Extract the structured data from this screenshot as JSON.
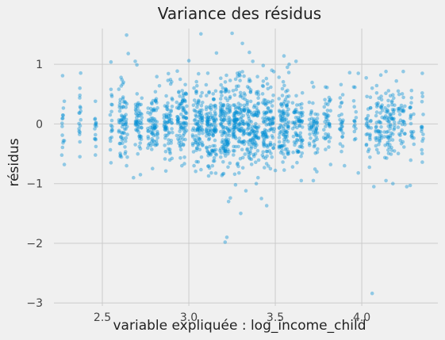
{
  "chart_data": {
    "type": "scatter",
    "title": "Variance des résidus",
    "xlabel": "variable expliquée : log_income_child",
    "ylabel": "résidus",
    "xlim": [
      2.22,
      4.44
    ],
    "ylim": [
      -3.05,
      1.6
    ],
    "x_ticks": [
      {
        "value": 2.5,
        "label": "2.5"
      },
      {
        "value": 3.0,
        "label": "3.0"
      },
      {
        "value": 3.5,
        "label": "3.5"
      },
      {
        "value": 4.0,
        "label": "4.0"
      }
    ],
    "y_ticks": [
      {
        "value": 1,
        "label": "1"
      },
      {
        "value": 0,
        "label": "0"
      },
      {
        "value": -1,
        "label": "−1"
      },
      {
        "value": -2,
        "label": "−2"
      },
      {
        "value": -3,
        "label": "−3"
      }
    ],
    "grid": true,
    "legend": "none",
    "point_color": "#008fd5",
    "point_alpha": 0.4,
    "background_color": "#f0f0f0",
    "grid_color": "#cbcbcb",
    "points": [
      {
        "x": 2.27,
        "y": 0.81
      },
      {
        "x": 2.28,
        "y": 0.38
      },
      {
        "x": 2.28,
        "y": -0.28
      },
      {
        "x": 2.28,
        "y": -0.68
      },
      {
        "x": 2.37,
        "y": 0.6
      },
      {
        "x": 2.37,
        "y": 0.48
      },
      {
        "x": 2.37,
        "y": -0.3
      },
      {
        "x": 2.37,
        "y": -0.55
      },
      {
        "x": 2.46,
        "y": 0.38
      },
      {
        "x": 2.46,
        "y": -0.25
      },
      {
        "x": 2.46,
        "y": -0.52
      },
      {
        "x": 2.55,
        "y": 1.04
      },
      {
        "x": 2.55,
        "y": 0.58
      },
      {
        "x": 2.55,
        "y": -0.65
      },
      {
        "x": 2.64,
        "y": 1.49
      },
      {
        "x": 2.65,
        "y": 1.18
      },
      {
        "x": 2.64,
        "y": -0.7
      },
      {
        "x": 2.69,
        "y": 1.05
      },
      {
        "x": 2.7,
        "y": 0.99
      },
      {
        "x": 2.68,
        "y": -0.9
      },
      {
        "x": 2.72,
        "y": -0.85
      },
      {
        "x": 2.83,
        "y": 0.64
      },
      {
        "x": 2.95,
        "y": 0.75
      },
      {
        "x": 2.96,
        "y": -0.7
      },
      {
        "x": 3.0,
        "y": 1.06
      },
      {
        "x": 3.07,
        "y": 1.51
      },
      {
        "x": 3.03,
        "y": -0.7
      },
      {
        "x": 3.16,
        "y": 1.19
      },
      {
        "x": 3.13,
        "y": -0.82
      },
      {
        "x": 3.23,
        "y": -1.3
      },
      {
        "x": 3.24,
        "y": -1.24
      },
      {
        "x": 3.21,
        "y": -1.98
      },
      {
        "x": 3.22,
        "y": -1.9
      },
      {
        "x": 3.25,
        "y": 1.52
      },
      {
        "x": 3.27,
        "y": -1.02
      },
      {
        "x": 3.29,
        "y": -0.82
      },
      {
        "x": 3.3,
        "y": -1.5
      },
      {
        "x": 3.31,
        "y": 1.35
      },
      {
        "x": 3.33,
        "y": -1.12
      },
      {
        "x": 3.35,
        "y": 1.2
      },
      {
        "x": 3.37,
        "y": 1.05
      },
      {
        "x": 3.39,
        "y": -1.0
      },
      {
        "x": 3.4,
        "y": -0.9
      },
      {
        "x": 3.42,
        "y": -1.25
      },
      {
        "x": 3.45,
        "y": -1.37
      },
      {
        "x": 3.43,
        "y": 0.98
      },
      {
        "x": 3.48,
        "y": 0.9
      },
      {
        "x": 3.5,
        "y": -0.78
      },
      {
        "x": 3.55,
        "y": 1.14
      },
      {
        "x": 3.57,
        "y": 0.95
      },
      {
        "x": 3.58,
        "y": 1.0
      },
      {
        "x": 3.62,
        "y": 1.05
      },
      {
        "x": 3.6,
        "y": -0.72
      },
      {
        "x": 3.65,
        "y": -0.95
      },
      {
        "x": 3.72,
        "y": -0.95
      },
      {
        "x": 3.74,
        "y": -0.8
      },
      {
        "x": 3.79,
        "y": 0.62
      },
      {
        "x": 3.82,
        "y": -0.68
      },
      {
        "x": 3.88,
        "y": 0.66
      },
      {
        "x": 3.93,
        "y": 0.86
      },
      {
        "x": 3.98,
        "y": 0.85
      },
      {
        "x": 3.9,
        "y": -0.7
      },
      {
        "x": 3.98,
        "y": -0.82
      },
      {
        "x": 4.06,
        "y": 0.6
      },
      {
        "x": 4.07,
        "y": -1.05
      },
      {
        "x": 4.06,
        "y": -2.84
      },
      {
        "x": 4.11,
        "y": 0.82
      },
      {
        "x": 4.14,
        "y": 0.88
      },
      {
        "x": 4.14,
        "y": -0.95
      },
      {
        "x": 4.18,
        "y": -1.0
      },
      {
        "x": 4.2,
        "y": 0.72
      },
      {
        "x": 4.24,
        "y": 0.88
      },
      {
        "x": 4.26,
        "y": -1.05
      },
      {
        "x": 4.28,
        "y": -1.03
      },
      {
        "x": 4.35,
        "y": 0.85
      },
      {
        "x": 4.35,
        "y": -0.64
      }
    ],
    "dense_columns": [
      {
        "x": 2.27,
        "half_width": 0.005,
        "mean": 0.0,
        "sd": 0.26,
        "n": 12
      },
      {
        "x": 2.37,
        "half_width": 0.006,
        "mean": 0.05,
        "sd": 0.27,
        "n": 14
      },
      {
        "x": 2.46,
        "half_width": 0.006,
        "mean": 0.0,
        "sd": 0.24,
        "n": 12
      },
      {
        "x": 2.55,
        "half_width": 0.008,
        "mean": 0.05,
        "sd": 0.3,
        "n": 16
      },
      {
        "x": 2.62,
        "half_width": 0.025,
        "mean": 0.0,
        "sd": 0.3,
        "n": 70
      },
      {
        "x": 2.71,
        "half_width": 0.02,
        "mean": 0.0,
        "sd": 0.28,
        "n": 55
      },
      {
        "x": 2.79,
        "half_width": 0.03,
        "mean": 0.0,
        "sd": 0.3,
        "n": 75
      },
      {
        "x": 2.88,
        "half_width": 0.025,
        "mean": 0.0,
        "sd": 0.3,
        "n": 70
      },
      {
        "x": 2.96,
        "half_width": 0.03,
        "mean": 0.05,
        "sd": 0.31,
        "n": 90
      },
      {
        "x": 3.05,
        "half_width": 0.03,
        "mean": 0.0,
        "sd": 0.31,
        "n": 95
      },
      {
        "x": 3.13,
        "half_width": 0.03,
        "mean": 0.0,
        "sd": 0.33,
        "n": 115
      },
      {
        "x": 3.21,
        "half_width": 0.03,
        "mean": 0.0,
        "sd": 0.37,
        "n": 130
      },
      {
        "x": 3.29,
        "half_width": 0.035,
        "mean": 0.0,
        "sd": 0.38,
        "n": 135
      },
      {
        "x": 3.37,
        "half_width": 0.035,
        "mean": 0.0,
        "sd": 0.36,
        "n": 120
      },
      {
        "x": 3.46,
        "half_width": 0.035,
        "mean": 0.0,
        "sd": 0.35,
        "n": 110
      },
      {
        "x": 3.55,
        "half_width": 0.03,
        "mean": 0.0,
        "sd": 0.33,
        "n": 100
      },
      {
        "x": 3.63,
        "half_width": 0.03,
        "mean": 0.0,
        "sd": 0.3,
        "n": 75
      },
      {
        "x": 3.72,
        "half_width": 0.025,
        "mean": 0.0,
        "sd": 0.28,
        "n": 55
      },
      {
        "x": 3.8,
        "half_width": 0.02,
        "mean": 0.0,
        "sd": 0.28,
        "n": 40
      },
      {
        "x": 3.88,
        "half_width": 0.012,
        "mean": 0.0,
        "sd": 0.27,
        "n": 25
      },
      {
        "x": 3.96,
        "half_width": 0.008,
        "mean": 0.0,
        "sd": 0.25,
        "n": 15
      },
      {
        "x": 4.04,
        "half_width": 0.015,
        "mean": 0.0,
        "sd": 0.26,
        "n": 30
      },
      {
        "x": 4.1,
        "half_width": 0.02,
        "mean": 0.0,
        "sd": 0.28,
        "n": 45
      },
      {
        "x": 4.16,
        "half_width": 0.03,
        "mean": 0.0,
        "sd": 0.3,
        "n": 70
      },
      {
        "x": 4.23,
        "half_width": 0.02,
        "mean": 0.0,
        "sd": 0.27,
        "n": 35
      },
      {
        "x": 4.29,
        "half_width": 0.012,
        "mean": 0.0,
        "sd": 0.27,
        "n": 20
      },
      {
        "x": 4.35,
        "half_width": 0.006,
        "mean": 0.0,
        "sd": 0.25,
        "n": 14
      }
    ]
  }
}
